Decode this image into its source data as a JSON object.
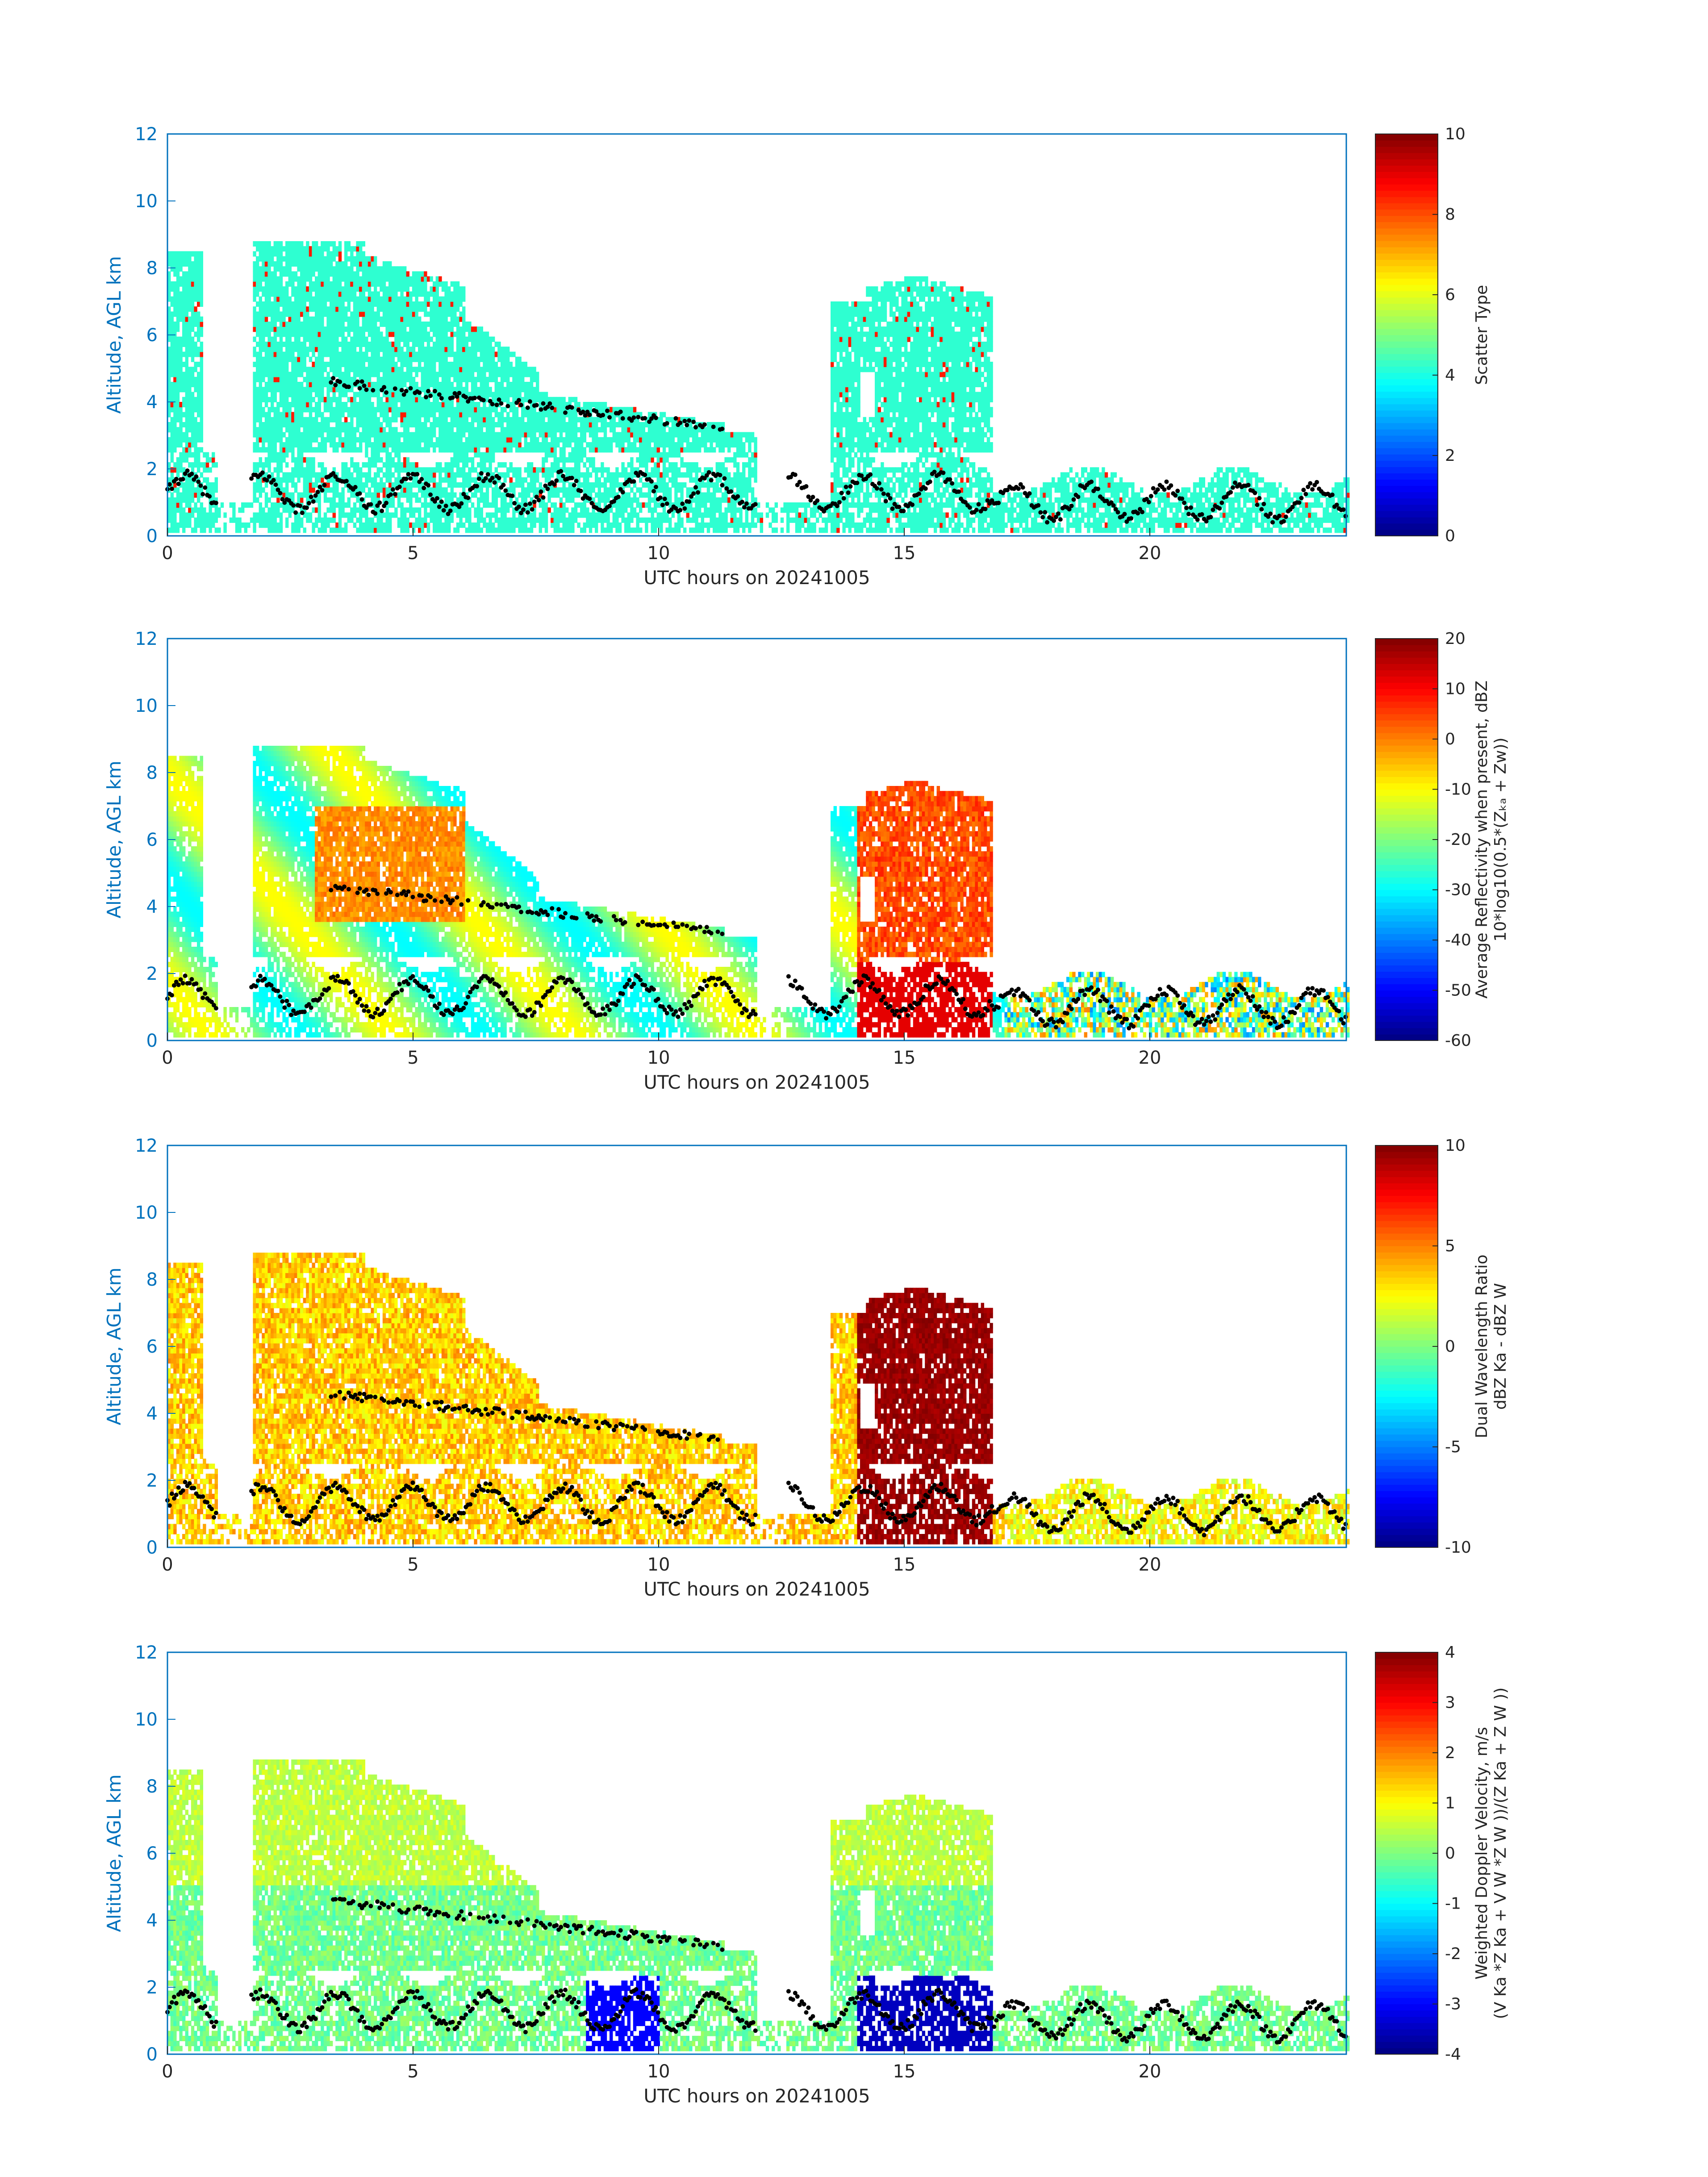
{
  "chart_data": [
    {
      "type": "heatmap",
      "xlabel": "UTC hours on 20241005",
      "ylabel": "Altitude, AGL km",
      "xlim": [
        0,
        24
      ],
      "ylim": [
        0,
        12
      ],
      "xticks": [
        0,
        5,
        10,
        15,
        20
      ],
      "yticks": [
        0,
        2,
        4,
        6,
        8,
        10,
        12
      ],
      "colorbar": {
        "label": "Scatter Type",
        "label2": "",
        "ticks": [
          0,
          2,
          4,
          6,
          8,
          10
        ],
        "range": [
          0,
          10
        ],
        "colormap": "jet"
      },
      "field": "scatter"
    },
    {
      "type": "heatmap",
      "xlabel": "UTC hours on 20241005",
      "ylabel": "Altitude, AGL km",
      "xlim": [
        0,
        24
      ],
      "ylim": [
        0,
        12
      ],
      "xticks": [
        0,
        5,
        10,
        15,
        20
      ],
      "yticks": [
        0,
        2,
        4,
        6,
        8,
        10,
        12
      ],
      "colorbar": {
        "label": "Average Reflectivity when present, dBZ",
        "label2": "10*log10(0.5*(Zₖₐ + Zw))",
        "ticks": [
          -60,
          -50,
          -40,
          -30,
          -20,
          -10,
          0,
          10,
          20
        ],
        "range": [
          -60,
          20
        ],
        "colormap": "jet"
      },
      "field": "reflectivity"
    },
    {
      "type": "heatmap",
      "xlabel": "UTC hours on 20241005",
      "ylabel": "Altitude, AGL km",
      "xlim": [
        0,
        24
      ],
      "ylim": [
        0,
        12
      ],
      "xticks": [
        0,
        5,
        10,
        15,
        20
      ],
      "yticks": [
        0,
        2,
        4,
        6,
        8,
        10,
        12
      ],
      "colorbar": {
        "label": "Dual Wavelength Ratio",
        "label2": "dBZ Ka - dBZ W",
        "ticks": [
          -10,
          -5,
          0,
          5,
          10
        ],
        "range": [
          -10,
          10
        ],
        "colormap": "jet"
      },
      "field": "dwr"
    },
    {
      "type": "heatmap",
      "xlabel": "UTC hours on 20241005",
      "ylabel": "Altitude, AGL km",
      "xlim": [
        0,
        24
      ],
      "ylim": [
        0,
        12
      ],
      "xticks": [
        0,
        5,
        10,
        15,
        20
      ],
      "yticks": [
        0,
        2,
        4,
        6,
        8,
        10,
        12
      ],
      "colorbar": {
        "label": "Weighted Doppler Velocity, m/s",
        "label2": "(V Ka *Z Ka + V W *Z W ))/(Z Ka + Z W ))",
        "ticks": [
          -4,
          -3,
          -2,
          -1,
          0,
          1,
          2,
          3,
          4
        ],
        "range": [
          -4,
          4
        ],
        "colormap": "jet"
      },
      "field": "velocity"
    }
  ]
}
